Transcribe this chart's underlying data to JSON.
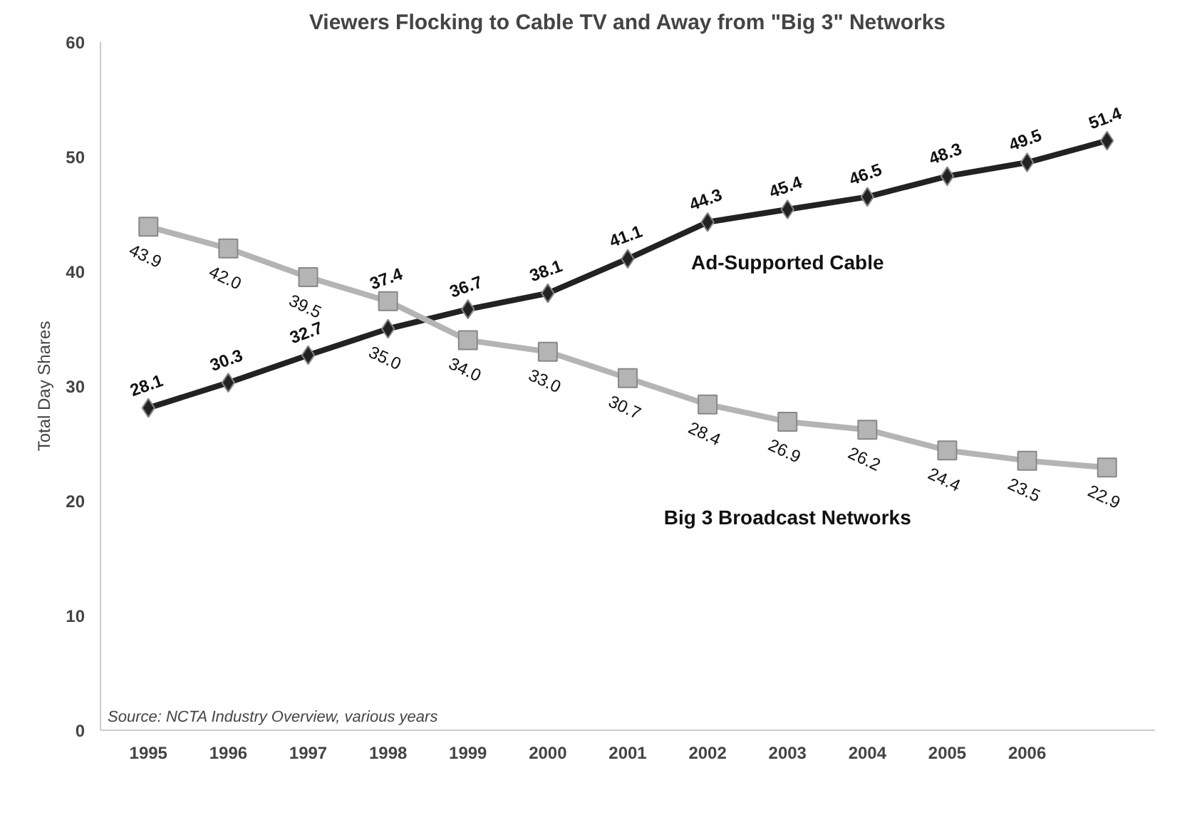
{
  "chart_data": {
    "type": "line",
    "title": "Viewers Flocking to Cable TV and Away from \"Big 3\" Networks",
    "ylabel": "Total Day Shares",
    "categories": [
      "1995",
      "1996",
      "1997",
      "1998",
      "1999",
      "2000",
      "2001",
      "2002",
      "2003",
      "2004",
      "2005",
      "2006",
      null
    ],
    "series": [
      {
        "name": "Ad-Supported Cable",
        "color": "#222222",
        "marker": "diamond",
        "values": [
          28.1,
          30.3,
          32.7,
          35.0,
          36.7,
          38.1,
          41.1,
          44.3,
          45.4,
          46.5,
          48.3,
          49.5,
          51.4
        ],
        "value_labels": [
          "28.1",
          "30.3",
          "32.7",
          "35.0",
          "36.7",
          "38.1",
          "41.1",
          "44.3",
          "45.4",
          "46.5",
          "48.3",
          "49.5",
          "51.4"
        ]
      },
      {
        "name": "Big 3 Broadcast Networks",
        "color": "#b4b4b4",
        "marker": "square",
        "values": [
          43.9,
          42.0,
          39.5,
          37.4,
          34.0,
          33.0,
          30.7,
          28.4,
          26.9,
          26.2,
          24.4,
          23.5,
          22.9
        ],
        "value_labels": [
          "43.9",
          "42.0",
          "39.5",
          "37.4",
          "34.0",
          "33.0",
          "30.7",
          "28.4",
          "26.9",
          "26.2",
          "24.4",
          "23.5",
          "22.9"
        ]
      }
    ],
    "ylim": [
      0,
      60
    ],
    "yticks": [
      0,
      10,
      20,
      30,
      40,
      50,
      60
    ],
    "grid": false,
    "annotations": [
      "Source: NCTA Industry Overview, various years"
    ]
  }
}
